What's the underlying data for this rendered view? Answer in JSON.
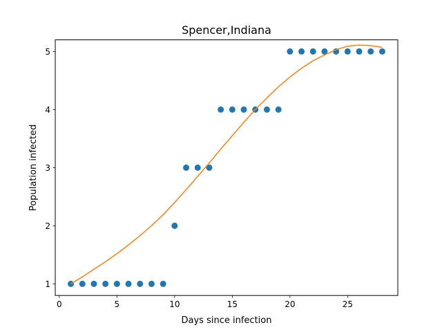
{
  "chart_data": {
    "type": "scatter",
    "title": "Spencer,Indiana",
    "xlabel": "Days since infection",
    "ylabel": "Population infected",
    "xlim": [
      -0.35,
      29.35
    ],
    "ylim": [
      0.8,
      5.2
    ],
    "xticks": [
      0,
      5,
      10,
      15,
      20,
      25
    ],
    "yticks": [
      1,
      2,
      3,
      4,
      5
    ],
    "grid": false,
    "series": [
      {
        "kind": "scatter",
        "color": "#1f77b4",
        "x": [
          1,
          2,
          3,
          4,
          5,
          6,
          7,
          8,
          9,
          10,
          11,
          12,
          13,
          14,
          15,
          16,
          17,
          18,
          19,
          20,
          21,
          22,
          23,
          24,
          25,
          26,
          27,
          28
        ],
        "y": [
          1,
          1,
          1,
          1,
          1,
          1,
          1,
          1,
          1,
          2,
          3,
          3,
          3,
          4,
          4,
          4,
          4,
          4,
          4,
          5,
          5,
          5,
          5,
          5,
          5,
          5,
          5,
          5
        ]
      },
      {
        "kind": "line",
        "color": "#ff7f0e",
        "x": [
          1,
          2,
          3,
          4,
          5,
          6,
          7,
          8,
          9,
          10,
          11,
          12,
          13,
          14,
          15,
          16,
          17,
          18,
          19,
          20,
          21,
          22,
          23,
          24,
          25,
          26,
          27,
          28
        ],
        "y": [
          1.0,
          1.12,
          1.25,
          1.38,
          1.52,
          1.67,
          1.83,
          2.0,
          2.19,
          2.4,
          2.62,
          2.85,
          3.08,
          3.32,
          3.55,
          3.78,
          4.0,
          4.2,
          4.39,
          4.56,
          4.71,
          4.84,
          4.94,
          5.03,
          5.09,
          5.11,
          5.1,
          5.07
        ]
      }
    ]
  }
}
